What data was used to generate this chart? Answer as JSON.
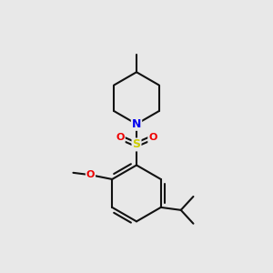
{
  "background_color": "#e8e8e8",
  "bond_color": "#111111",
  "bond_width": 1.5,
  "atom_colors": {
    "N": "#0000ee",
    "O": "#ee0000",
    "S": "#cccc00",
    "C": "#111111"
  },
  "figsize": [
    3.0,
    3.0
  ],
  "dpi": 100,
  "xlim": [
    -2.2,
    2.2
  ],
  "ylim": [
    -2.5,
    2.5
  ]
}
